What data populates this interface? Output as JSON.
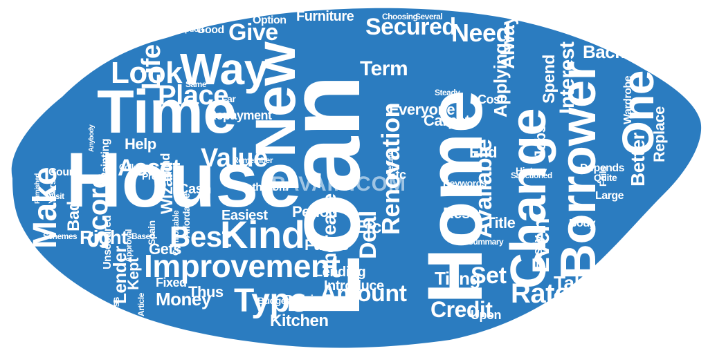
{
  "colors": {
    "background": "#ffffff",
    "cloud": "#2b7cc0",
    "words": "#ffffff"
  },
  "watermark": "PAVAIN.COM",
  "words": [
    "Loan",
    "Home",
    "House",
    "Time",
    "Borrower",
    "Change",
    "New",
    "Way",
    "Improvement",
    "One",
    "Renovation",
    "Best",
    "Kind",
    "Look",
    "Place",
    "Amount",
    "Type",
    "Secured",
    "Give",
    "Value",
    "Asset",
    "Make",
    "Score",
    "Credit",
    "Rate",
    "Life",
    "Need",
    "Term",
    "Available",
    "Interest",
    "Applying",
    "Even",
    "Taken",
    "Set",
    "Better",
    "Deal",
    "Always",
    "Etc",
    "Increase",
    "Kitchen",
    "Money",
    "Lender",
    "Right",
    "Back",
    "Jobs",
    "Everyone",
    "Help",
    "Tiling",
    "Wizard",
    "Funds",
    "Introduce",
    "Lending",
    "Period",
    "Furniture",
    "Easiest",
    "Carpets",
    "Spend",
    "Replace",
    "Bathroom",
    "End",
    "Rest",
    "Unsecured",
    "Bad",
    "Title",
    "Cash",
    "Prevail",
    "Thus",
    "Kept",
    "Fixed",
    "Etc",
    "Budget",
    "Repayment",
    "Gets",
    "Cost",
    "Upon",
    "Easily",
    "Quotes",
    "Deficiency",
    "Depends",
    "Option",
    "Good",
    "History",
    "Wardrobe",
    "Spain",
    "Mind",
    "Painting",
    "Count",
    "Comfortable",
    "Collateral",
    "Option",
    "Large",
    "Body",
    "Several",
    "Choosing",
    "Refund",
    "Keywords",
    "Sanctioned",
    "Quite",
    "Fails",
    "Years",
    "Visit",
    "Firstly",
    "Affordable",
    "Remember",
    "Summary",
    "Article",
    "Approval",
    "Less",
    "Based",
    "Same",
    "Far",
    "Mortgage",
    "Schemes",
    "Furnished",
    "Anybody",
    "Condition",
    "Steady"
  ]
}
